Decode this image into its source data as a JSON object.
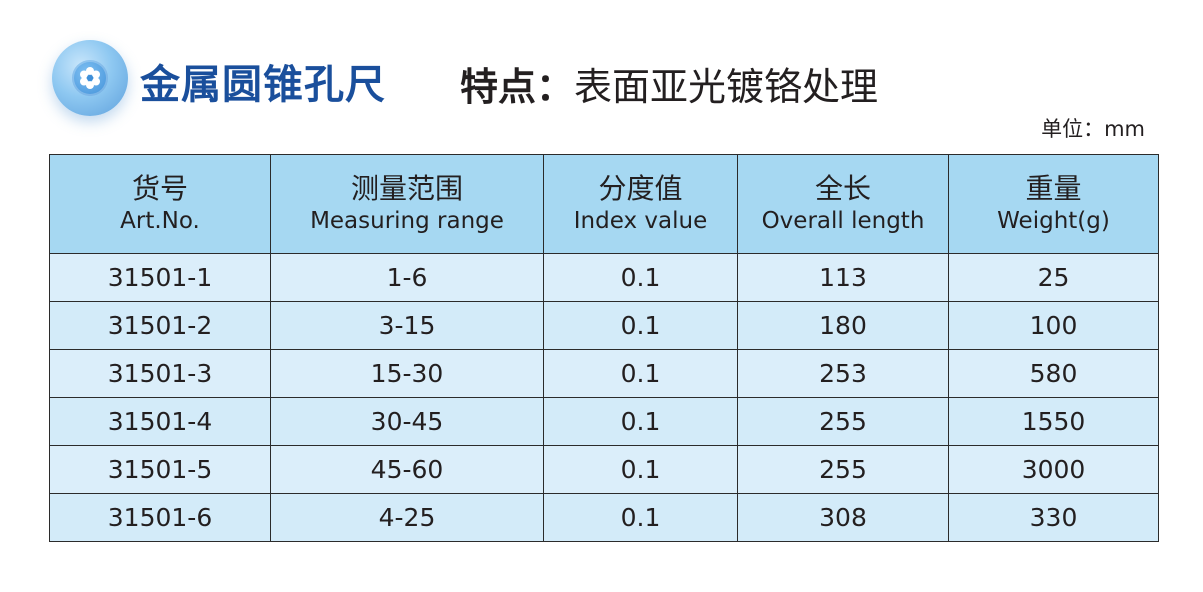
{
  "header": {
    "title": "金属圆锥孔尺",
    "feature_label": "特点：",
    "feature_text": "表面亚光镀铬处理",
    "icon": "gear-icon"
  },
  "unit": "单位：mm",
  "table": {
    "columns": [
      {
        "cn": "货号",
        "en": "Art.No."
      },
      {
        "cn": "测量范围",
        "en": "Measuring range"
      },
      {
        "cn": "分度值",
        "en": "Index value"
      },
      {
        "cn": "全长",
        "en": "Overall length"
      },
      {
        "cn": "重量",
        "en": "Weight(g)"
      }
    ],
    "rows": [
      [
        "31501-1",
        "1-6",
        "0.1",
        "113",
        "25"
      ],
      [
        "31501-2",
        "3-15",
        "0.1",
        "180",
        "100"
      ],
      [
        "31501-3",
        "15-30",
        "0.1",
        "253",
        "580"
      ],
      [
        "31501-4",
        "30-45",
        "0.1",
        "255",
        "1550"
      ],
      [
        "31501-5",
        "45-60",
        "0.1",
        "255",
        "3000"
      ],
      [
        "31501-6",
        "4-25",
        "0.1",
        "308",
        "330"
      ]
    ]
  },
  "colors": {
    "title": "#1a4f9c",
    "header_bg": "#a6d8f2",
    "row_bg": "#d3ebf9"
  }
}
